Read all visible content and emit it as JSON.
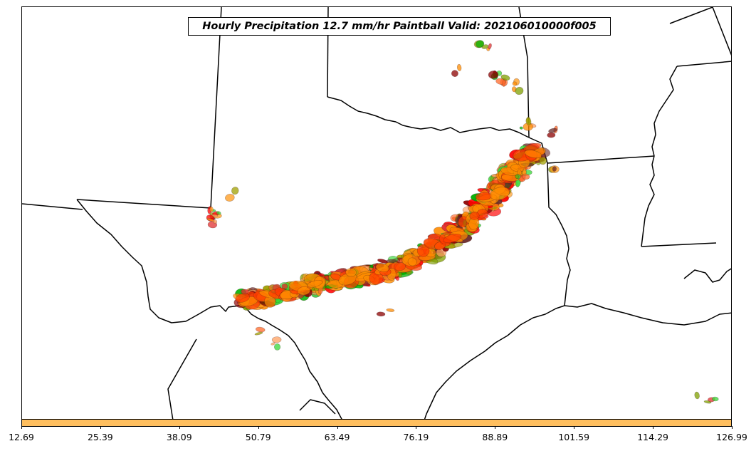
{
  "map": {
    "title": "Hourly Precipitation 12.7 mm/hr Paintball Valid: 202106010000f005"
  },
  "colorbar": {
    "color": "#ffbf5f",
    "ticks": [
      "12.69",
      "25.39",
      "38.09",
      "50.79",
      "63.49",
      "76.19",
      "88.89",
      "101.59",
      "114.29",
      "126.99"
    ]
  },
  "palette": [
    "#00b000",
    "#38d838",
    "#7fa000",
    "#a0a000",
    "#ff8c00",
    "#ff6a2a",
    "#ff0000",
    "#e03030",
    "#8b0000",
    "#6b2a2a",
    "#ffa060",
    "#ff9a1a"
  ]
}
